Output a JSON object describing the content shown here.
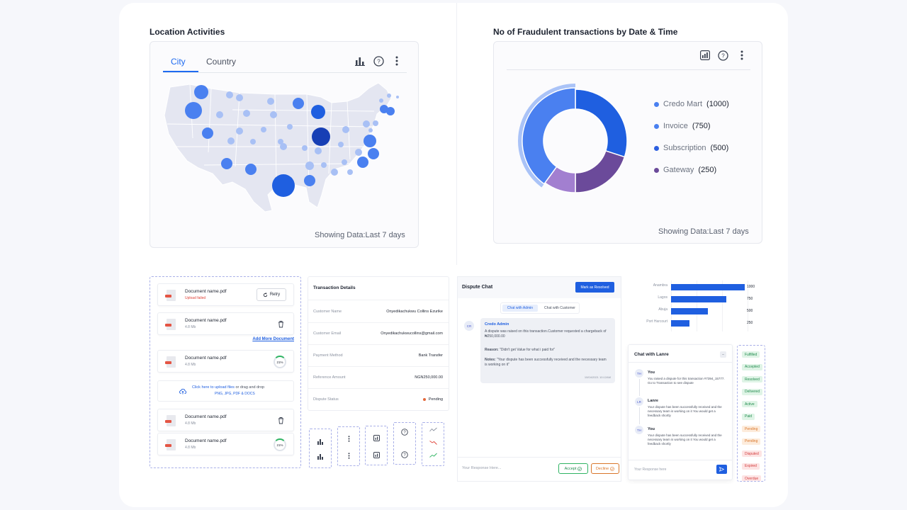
{
  "location": {
    "title": "Location Activities",
    "tabs": [
      {
        "label": "City"
      },
      {
        "label": "Country"
      }
    ],
    "active_tab": "City",
    "showing": "Showing Data:Last 7 days",
    "icons": [
      "bar-chart-icon",
      "help-icon",
      "more-vertical-icon"
    ]
  },
  "fraud": {
    "title": "No of Fraudulent transactions by Date & Time",
    "showing": "Showing Data:Last 7 days",
    "icons": [
      "chart-icon",
      "help-icon",
      "more-vertical-icon"
    ],
    "legend": [
      {
        "name": "Credo Mart",
        "value": "(1000)",
        "color": "#4a80f0"
      },
      {
        "name": "Invoice",
        "value": "(750)",
        "color": "#4a80f0"
      },
      {
        "name": "Subscription",
        "value": "(500)",
        "color": "#2d5fe0"
      },
      {
        "name": "Gateway",
        "value": "(250)",
        "color": "#6b4a9a"
      }
    ]
  },
  "chart_data": {
    "type": "pie",
    "categories": [
      "Credo Mart",
      "Invoice",
      "Subscription",
      "Gateway"
    ],
    "values": [
      1000,
      750,
      500,
      250
    ],
    "colors": [
      "#4a80f0",
      "#1f5fe0",
      "#6b4a9a",
      "#a27fd0"
    ],
    "legend_position": "right"
  },
  "docs": {
    "items": [
      {
        "name": "Document name.pdf",
        "sub": "Upload failed",
        "action": "Retry"
      },
      {
        "name": "Document name.pdf",
        "sub": "4.8 Mb"
      },
      {
        "name": "Document name.pdf",
        "sub": "4.8 Mb",
        "progress": "21%"
      },
      {
        "name": "Document name.pdf",
        "sub": "4.8 Mb"
      },
      {
        "name": "Document name.pdf",
        "sub": "4.8 Mb",
        "progress": "21%"
      }
    ],
    "add_more": "Add More Document",
    "upload_link": "Click here to upload files",
    "upload_rest": " or drag and drop",
    "upload_types": "PNG, JPG, PDF & DOCS"
  },
  "txn": {
    "title": "Transaction Details",
    "rows": [
      {
        "label": "Customer Name",
        "value": "Onyedikachukwu Collins Ezurike"
      },
      {
        "label": "Customer Email",
        "value": "Onyedikachukwucollins@gmail.com"
      },
      {
        "label": "Payment Method",
        "value": "Bank Transfer"
      },
      {
        "label": "Reference Amount",
        "value": "NGN250,000.00"
      },
      {
        "label": "Dispute Status",
        "value": "Pending"
      }
    ]
  },
  "dispute": {
    "title": "Dispute Chat",
    "mark_resolved": "Mark as Resolved",
    "tabs": [
      "Chat with Admin",
      "Chat with Customer"
    ],
    "avatar": "CR",
    "sender": "Credo Admin",
    "msg1": "A dispute was raised on this transaction.Customer requested a chargeback of ₦250,000.00",
    "reason_label": "Reason:",
    "reason": " \"Didn't get Value for what i paid for\"",
    "notes_label": "Notes:",
    "notes": " \"Your dispute has been successfully received and the necessary team is working on it\"",
    "time": "10/04/2021  10:12AM",
    "placeholder": "Your Response Here...",
    "accept": "Accept",
    "decline": "Decline"
  },
  "hbar": {
    "rows": [
      {
        "label": "Anambra",
        "value": "1000"
      },
      {
        "label": "Lagos",
        "value": "750"
      },
      {
        "label": "Abuja",
        "value": "500"
      },
      {
        "label": "Port Harcourt",
        "value": "250"
      }
    ]
  },
  "lanre": {
    "title": "Chat with Lanre",
    "messages": [
      {
        "avatar": "TH",
        "name": "You",
        "text": "You raised a dispute for this transaction #7394_15777. Go to Transaction to see dispute"
      },
      {
        "avatar": "LR",
        "name": "Lanre",
        "text": "Your dispute has been successfully received and the necessary team is working on it You would get a feedback shortly"
      },
      {
        "avatar": "TH",
        "name": "You",
        "text": "Your dispute has been successfully received and the necessary team is working on it You would get a feedback shortly"
      }
    ],
    "placeholder": "Your Response here"
  },
  "statuses": [
    {
      "label": "Fulfilled",
      "bg": "#dff4e6",
      "fg": "#1f8a4c"
    },
    {
      "label": "Accepted",
      "bg": "#dff4e6",
      "fg": "#1f8a4c"
    },
    {
      "label": "Resolved",
      "bg": "#dff4e6",
      "fg": "#1f8a4c"
    },
    {
      "label": "Delivered",
      "bg": "#dff4e6",
      "fg": "#1f8a4c"
    },
    {
      "label": "Active",
      "bg": "#dff4e6",
      "fg": "#1f8a4c"
    },
    {
      "label": "Paid",
      "bg": "#dff4e6",
      "fg": "#1f8a4c"
    },
    {
      "label": "Pending",
      "bg": "#fdecdc",
      "fg": "#d9762a"
    },
    {
      "label": "Pending",
      "bg": "#fdecdc",
      "fg": "#d9762a"
    },
    {
      "label": "Disputed",
      "bg": "#fde4e4",
      "fg": "#d33b3b"
    },
    {
      "label": "Expired",
      "bg": "#fde4e4",
      "fg": "#d33b3b"
    },
    {
      "label": "Overdue",
      "bg": "#fde4e4",
      "fg": "#d33b3b"
    }
  ]
}
